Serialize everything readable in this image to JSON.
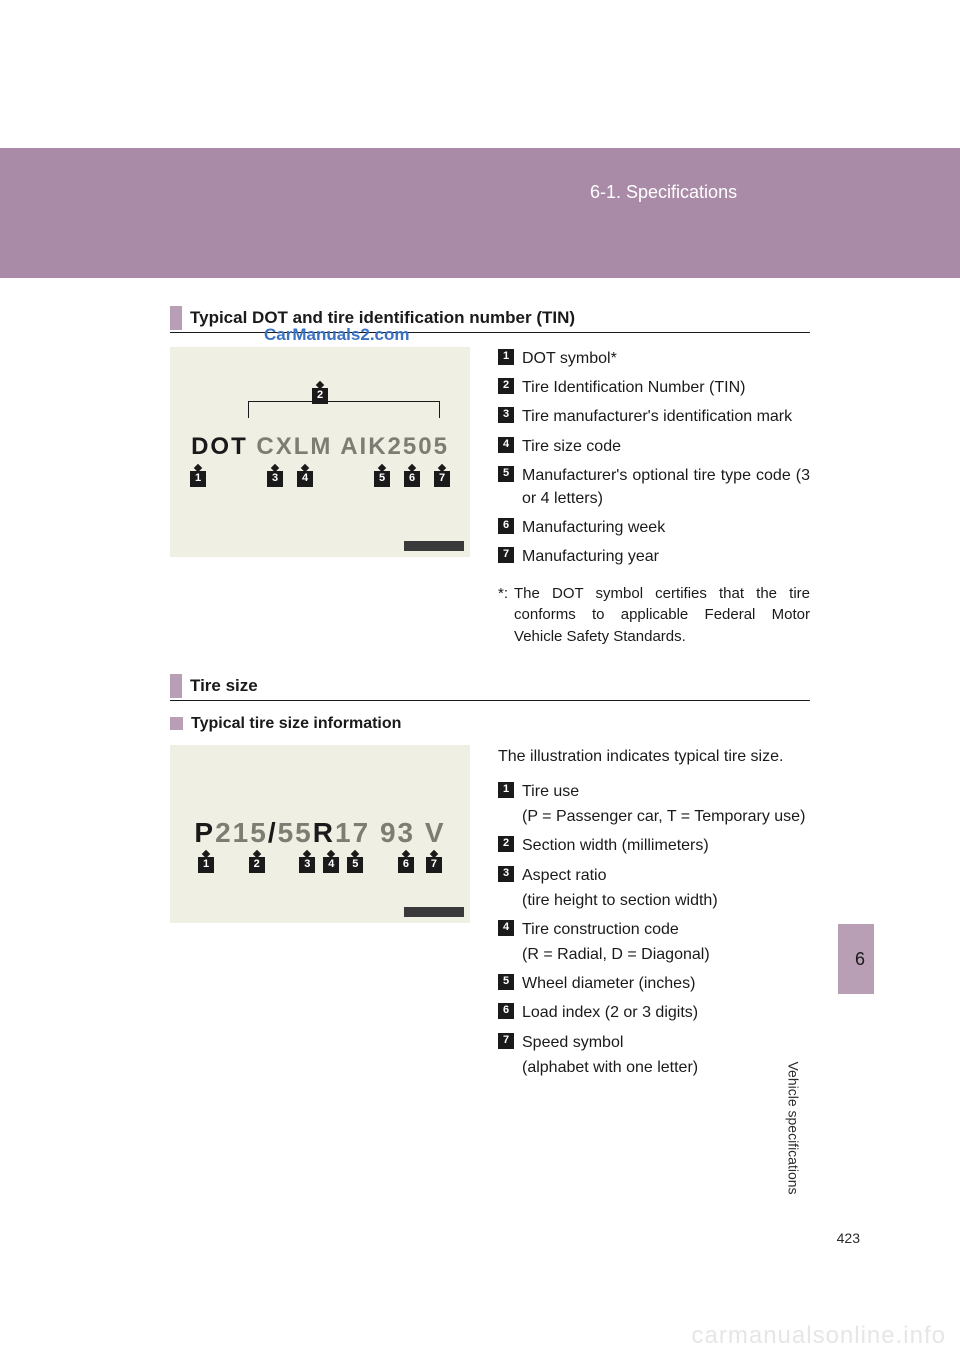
{
  "header": {
    "chapter_label": "6-1. Specifications",
    "background": "#a98ba7"
  },
  "side_tab": {
    "number": "6",
    "vertical_label": "Vehicle specifications",
    "background": "#b89fb6"
  },
  "page_number": "423",
  "bottom_watermark": "carmanualsonline.info",
  "section_dot": {
    "heading": "Typical DOT and tire identification number (TIN)",
    "watermark": "CarManuals2.com",
    "sample_text_prefix": "DOT",
    "sample_text_rest": " CXLM AIK2505",
    "callout_top_index": "2",
    "bottom_indices": [
      "1",
      "3",
      "4",
      "5",
      "6",
      "7"
    ],
    "legend": [
      {
        "i": "1",
        "t": "DOT symbol*"
      },
      {
        "i": "2",
        "t": "Tire Identification Number (TIN)"
      },
      {
        "i": "3",
        "t": "Tire manufacturer's identification mark"
      },
      {
        "i": "4",
        "t": "Tire size code"
      },
      {
        "i": "5",
        "t": "Manufacturer's optional tire type code (3 or 4 letters)"
      },
      {
        "i": "6",
        "t": "Manufacturing week"
      },
      {
        "i": "7",
        "t": "Manufacturing year"
      }
    ],
    "footnote_star": "*:",
    "footnote_text": "The DOT symbol certifies that the tire conforms to applicable Federal Motor Vehicle Safety Standards."
  },
  "section_size": {
    "heading": "Tire size",
    "subheading": "Typical tire size information",
    "intro": "The illustration indicates typical tire size.",
    "sample_parts": {
      "p": "P",
      "w": "215",
      "slash": "/",
      "ar": "55",
      "r": "R",
      "d": "17",
      "li": "93",
      "ss": "V"
    },
    "bottom_indices": [
      "1",
      "2",
      "3",
      "4",
      "5",
      "6",
      "7"
    ],
    "legend": [
      {
        "i": "1",
        "t": "Tire use",
        "sub": "(P = Passenger car,\nT = Temporary use)"
      },
      {
        "i": "2",
        "t": "Section width (millimeters)"
      },
      {
        "i": "3",
        "t": "Aspect ratio",
        "sub": "(tire height to section width)"
      },
      {
        "i": "4",
        "t": "Tire construction code",
        "sub": "(R = Radial, D = Diagonal)"
      },
      {
        "i": "5",
        "t": "Wheel diameter (inches)"
      },
      {
        "i": "6",
        "t": "Load index (2 or 3 digits)"
      },
      {
        "i": "7",
        "t": "Speed symbol",
        "sub": "(alphabet with one letter)"
      }
    ]
  },
  "colors": {
    "accent": "#b89fb6",
    "header": "#a98ba7",
    "figure_bg": "#f0efe3",
    "watermark_blue": "#3a73c4",
    "muted_text": "#7e7d73",
    "black": "#1a1a1a"
  }
}
